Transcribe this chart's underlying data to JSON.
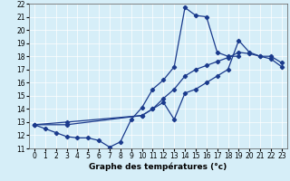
{
  "xlabel": "Graphe des températures (°c)",
  "xlim": [
    -0.5,
    23.5
  ],
  "ylim": [
    11,
    22
  ],
  "xticks": [
    0,
    1,
    2,
    3,
    4,
    5,
    6,
    7,
    8,
    9,
    10,
    11,
    12,
    13,
    14,
    15,
    16,
    17,
    18,
    19,
    20,
    21,
    22,
    23
  ],
  "yticks": [
    11,
    12,
    13,
    14,
    15,
    16,
    17,
    18,
    19,
    20,
    21,
    22
  ],
  "background_color": "#d6eef8",
  "line_color": "#1a3a8c",
  "s1_x": [
    0,
    1,
    2,
    3,
    4,
    5,
    6,
    7,
    8,
    9,
    10,
    11,
    12,
    13,
    14,
    15,
    16,
    17,
    18,
    19
  ],
  "s1_y": [
    12.8,
    12.5,
    12.2,
    11.9,
    11.8,
    11.8,
    11.6,
    11.1,
    11.5,
    13.2,
    14.1,
    15.5,
    16.2,
    17.2,
    21.7,
    21.1,
    21.0,
    18.3,
    18.0,
    18.0
  ],
  "s2_x": [
    0,
    3,
    10,
    11,
    12,
    13,
    14,
    15,
    16,
    17,
    18,
    19,
    20,
    21,
    22,
    23
  ],
  "s2_y": [
    12.8,
    12.8,
    13.5,
    14.0,
    14.8,
    15.5,
    16.5,
    17.0,
    17.3,
    17.6,
    17.9,
    18.3,
    18.2,
    18.0,
    18.0,
    17.5
  ],
  "s3_x": [
    0,
    3,
    10,
    11,
    12,
    13,
    14,
    15,
    16,
    17,
    18,
    19,
    20,
    21,
    22,
    23
  ],
  "s3_y": [
    12.8,
    13.0,
    13.5,
    14.0,
    14.5,
    13.2,
    15.2,
    15.5,
    16.0,
    16.5,
    17.0,
    19.2,
    18.3,
    18.0,
    17.8,
    17.2
  ],
  "tick_fontsize": 5.5,
  "xlabel_fontsize": 6.5,
  "linewidth": 0.9,
  "markersize": 2.2
}
